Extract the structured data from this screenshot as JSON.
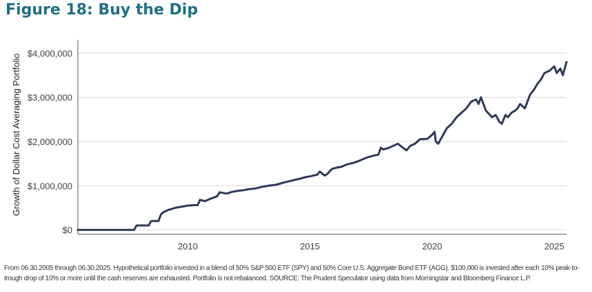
{
  "figure_title": "Figure 18: Buy the Dip",
  "footnote": "From 06.30.2005 through 06.30.2025. Hypothetical portfolio invested in a blend of 50% S&P 500 ETF (SPY) and 50% Core U.S. Aggregate Bond ETF (AGG). $100,000 is invested after each 10% peak-to-trough drop of 10% or more until the cash reserves are exhausted. Portfolio is not rebalanced. SOURCE: The Prudent Speculator using data from Morningstar and Bloomberg Finance L.P.",
  "colors": {
    "title": "#1f6f84",
    "line": "#2e3a55",
    "grid": "#d9d9d9",
    "axis": "#555555"
  },
  "chart_data": {
    "type": "line",
    "title": "Figure 18: Buy the Dip",
    "xlabel": "",
    "ylabel": "Growth of Dollar Cost Averaging Portfolio",
    "xlim": [
      2005.5,
      2025.5
    ],
    "ylim": [
      -100000,
      4300000
    ],
    "xticks": [
      2010,
      2015,
      2020,
      2025
    ],
    "xtick_labels": [
      "2010",
      "2015",
      "2020",
      "2025"
    ],
    "yticks": [
      0,
      1000000,
      2000000,
      3000000,
      4000000
    ],
    "ytick_labels": [
      "$0",
      "$1,000,000",
      "$2,000,000",
      "$3,000,000",
      "$4,000,000"
    ],
    "grid": "horizontal",
    "series": [
      {
        "name": "Dollar Cost Averaging Portfolio",
        "x": [
          2005.5,
          2007.8,
          2007.9,
          2008.4,
          2008.5,
          2008.8,
          2008.9,
          2009.0,
          2009.2,
          2009.5,
          2009.8,
          2010.0,
          2010.2,
          2010.4,
          2010.5,
          2010.7,
          2011.0,
          2011.2,
          2011.3,
          2011.6,
          2011.8,
          2012.0,
          2012.3,
          2012.5,
          2012.8,
          2013.0,
          2013.3,
          2013.6,
          2013.8,
          2014.0,
          2014.3,
          2014.6,
          2014.8,
          2015.0,
          2015.3,
          2015.4,
          2015.6,
          2015.7,
          2015.9,
          2016.1,
          2016.3,
          2016.5,
          2016.8,
          2017.0,
          2017.3,
          2017.6,
          2017.8,
          2017.9,
          2018.0,
          2018.2,
          2018.4,
          2018.6,
          2018.8,
          2018.95,
          2019.1,
          2019.3,
          2019.5,
          2019.8,
          2020.0,
          2020.1,
          2020.15,
          2020.25,
          2020.4,
          2020.6,
          2020.8,
          2021.0,
          2021.2,
          2021.4,
          2021.6,
          2021.8,
          2021.9,
          2022.0,
          2022.2,
          2022.45,
          2022.6,
          2022.75,
          2022.85,
          2023.0,
          2023.1,
          2023.25,
          2023.4,
          2023.5,
          2023.6,
          2023.8,
          2024.0,
          2024.2,
          2024.3,
          2024.45,
          2024.6,
          2024.8,
          2025.0,
          2025.1,
          2025.25,
          2025.35,
          2025.5
        ],
        "values": [
          0,
          0,
          100000,
          100000,
          200000,
          200000,
          350000,
          400000,
          450000,
          500000,
          530000,
          550000,
          560000,
          560000,
          680000,
          650000,
          720000,
          760000,
          850000,
          820000,
          860000,
          880000,
          900000,
          920000,
          940000,
          970000,
          1000000,
          1020000,
          1050000,
          1080000,
          1120000,
          1160000,
          1190000,
          1210000,
          1250000,
          1320000,
          1230000,
          1260000,
          1380000,
          1410000,
          1430000,
          1480000,
          1520000,
          1560000,
          1630000,
          1680000,
          1700000,
          1860000,
          1820000,
          1850000,
          1900000,
          1950000,
          1860000,
          1800000,
          1900000,
          1950000,
          2050000,
          2060000,
          2150000,
          2220000,
          2000000,
          1950000,
          2100000,
          2300000,
          2400000,
          2550000,
          2650000,
          2750000,
          2900000,
          2950000,
          2850000,
          3000000,
          2700000,
          2550000,
          2600000,
          2450000,
          2400000,
          2600000,
          2550000,
          2650000,
          2700000,
          2750000,
          2850000,
          2750000,
          3050000,
          3200000,
          3300000,
          3400000,
          3550000,
          3600000,
          3700000,
          3550000,
          3650000,
          3500000,
          3800000
        ]
      }
    ]
  }
}
